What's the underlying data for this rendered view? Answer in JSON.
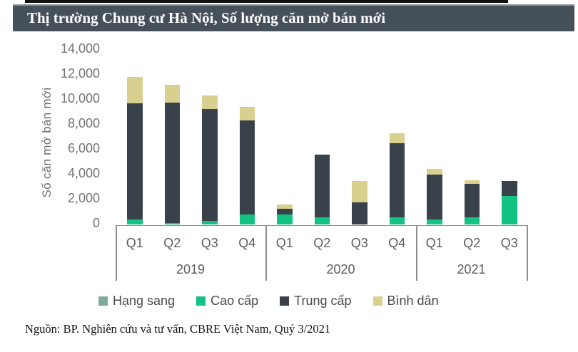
{
  "title": "Thị trường Chung cư Hà Nội, Số lượng căn mở bán mới",
  "source": "Nguồn: BP. Nghiên cứu và tư vấn, CBRE Việt Nam, Quý 3/2021",
  "chart_data": {
    "type": "bar",
    "stacked": true,
    "title": "Thị trường Chung cư Hà Nội, Số lượng căn mở bán mới",
    "ylabel": "Số căn mở bán mới",
    "ylim": [
      0,
      14000
    ],
    "ytick_step": 2000,
    "ytick_labels": [
      "0",
      "2,000",
      "4,000",
      "6,000",
      "8,000",
      "10,000",
      "12,000",
      "14,000"
    ],
    "categories": [
      "Q1",
      "Q2",
      "Q3",
      "Q4",
      "Q1",
      "Q2",
      "Q3",
      "Q4",
      "Q1",
      "Q2",
      "Q3"
    ],
    "groups": [
      {
        "label": "2019",
        "span": 4
      },
      {
        "label": "2020",
        "span": 4
      },
      {
        "label": "2021",
        "span": 3
      }
    ],
    "legend_position": "bottom",
    "grid": false,
    "series": [
      {
        "name": "Hạng sang",
        "color": "#7fa99b",
        "values": [
          0,
          0,
          0,
          0,
          0,
          0,
          0,
          0,
          0,
          0,
          0
        ]
      },
      {
        "name": "Cao cấp",
        "color": "#12c384",
        "values": [
          400,
          150,
          300,
          800,
          800,
          600,
          0,
          600,
          450,
          600,
          2300
        ]
      },
      {
        "name": "Trung cấp",
        "color": "#39424a",
        "values": [
          9300,
          9650,
          8950,
          7550,
          500,
          5000,
          1800,
          5900,
          3550,
          2700,
          1200
        ]
      },
      {
        "name": "Bình dân",
        "color": "#d9d08f",
        "values": [
          2100,
          1400,
          1100,
          1100,
          300,
          0,
          1700,
          800,
          500,
          250,
          0
        ]
      }
    ],
    "totals": [
      11800,
      11200,
      10350,
      9450,
      1600,
      5600,
      3500,
      7300,
      4500,
      3550,
      3500
    ]
  }
}
